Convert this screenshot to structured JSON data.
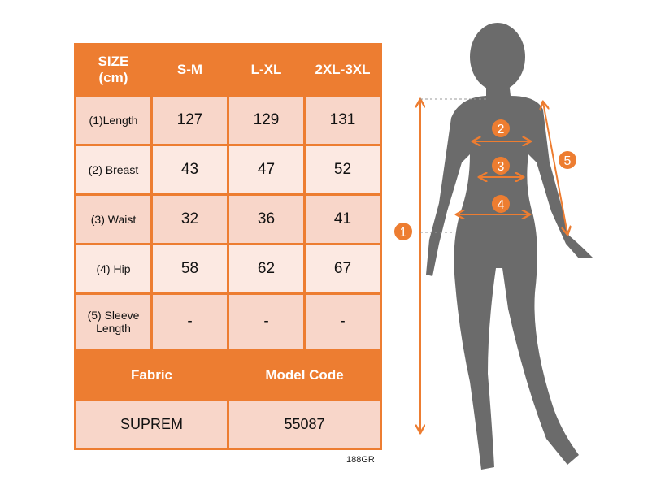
{
  "table": {
    "header": [
      "SIZE\n(cm)",
      "S-M",
      "L-XL",
      "2XL-3XL"
    ],
    "header_line1": "SIZE",
    "header_line2": "(cm)",
    "rows": [
      {
        "label": "(1)Length",
        "values": [
          "127",
          "129",
          "131"
        ]
      },
      {
        "label": "(2) Breast",
        "values": [
          "43",
          "47",
          "52"
        ]
      },
      {
        "label": "(3) Waist",
        "values": [
          "32",
          "36",
          "41"
        ]
      },
      {
        "label": "(4) Hip",
        "values": [
          "58",
          "62",
          "67"
        ]
      },
      {
        "label_line1": "(5) Sleeve",
        "label_line2": "Length",
        "values": [
          "-",
          "-",
          "-"
        ]
      }
    ],
    "footer_headers": [
      "Fabric",
      "Model Code"
    ],
    "footer_values": [
      "SUPREM",
      "55087"
    ]
  },
  "product_code": "188GR",
  "figure": {
    "markers": [
      "1",
      "2",
      "3",
      "4",
      "5"
    ],
    "accent_color": "#ED7D31",
    "silhouette_color": "#6B6B6B"
  }
}
